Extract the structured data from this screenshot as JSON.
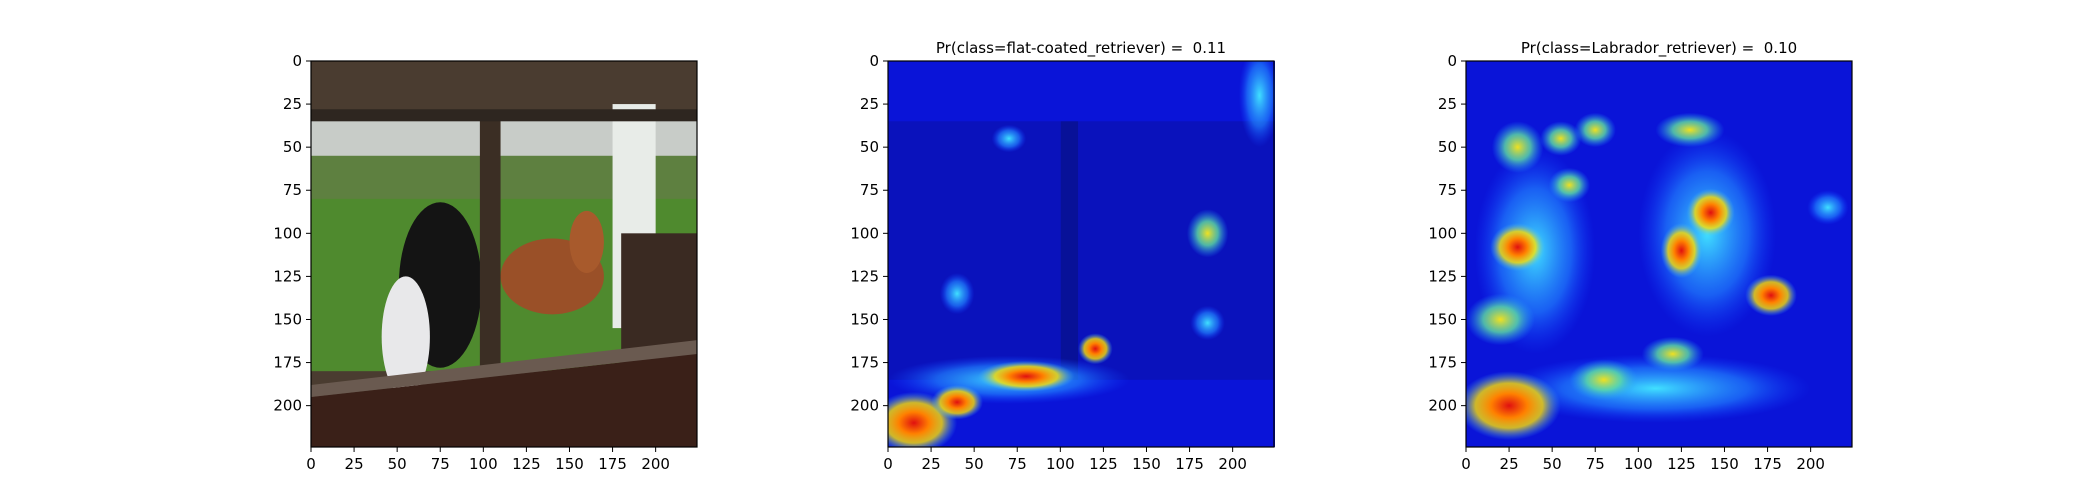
{
  "chart_data": [
    {
      "type": "image",
      "xlim": [
        0,
        224
      ],
      "ylim": [
        224,
        0
      ],
      "xticks": [
        0,
        25,
        50,
        75,
        100,
        125,
        150,
        175,
        200
      ],
      "yticks": [
        0,
        25,
        50,
        75,
        100,
        125,
        150,
        175,
        200
      ]
    },
    {
      "type": "image",
      "title": "Pr(class=flat-coated_retriever) =  0.11",
      "xlim": [
        0,
        224
      ],
      "ylim": [
        224,
        0
      ],
      "xticks": [
        0,
        25,
        50,
        75,
        100,
        125,
        150,
        175,
        200
      ],
      "yticks": [
        0,
        25,
        50,
        75,
        100,
        125,
        150,
        175,
        200
      ]
    },
    {
      "type": "image",
      "title": "Pr(class=Labrador_retriever) =  0.10",
      "xlim": [
        0,
        224
      ],
      "ylim": [
        224,
        0
      ],
      "xticks": [
        0,
        25,
        50,
        75,
        100,
        125,
        150,
        175,
        200
      ],
      "yticks": [
        0,
        25,
        50,
        75,
        100,
        125,
        150,
        175,
        200
      ]
    }
  ]
}
